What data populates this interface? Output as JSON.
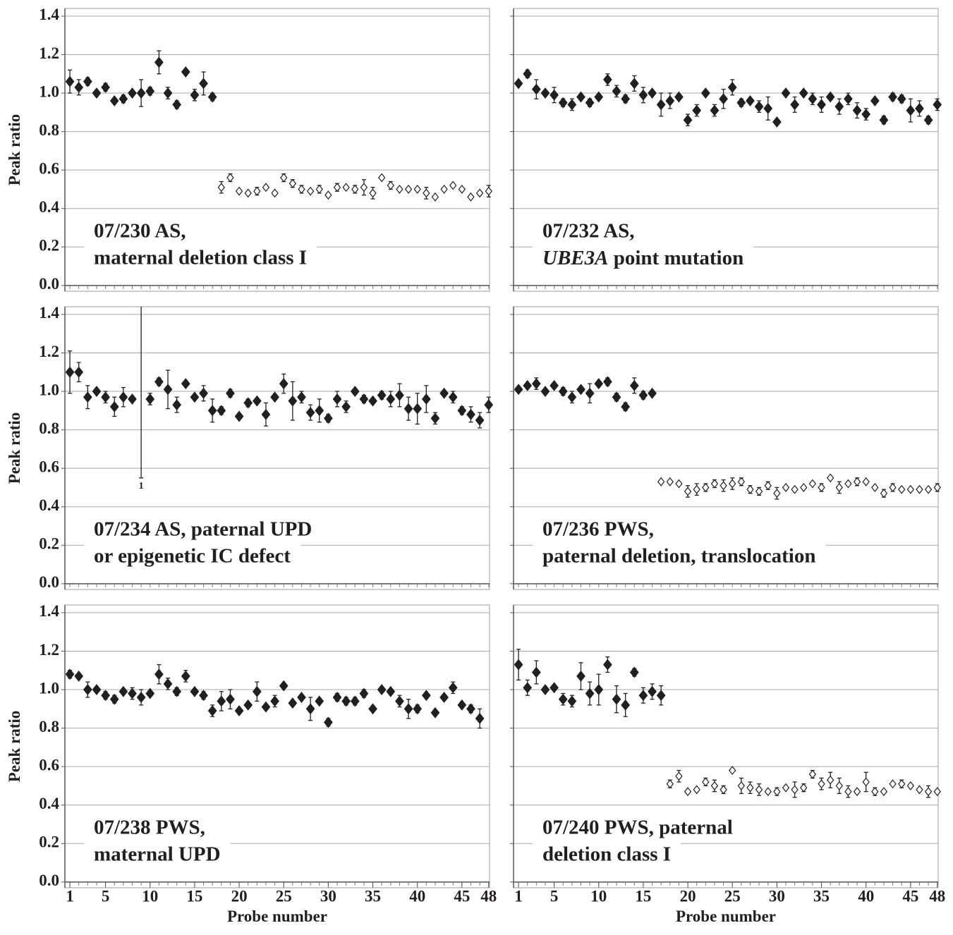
{
  "chart_data": [
    {
      "type": "scatter",
      "title": [
        "07/230 AS,",
        "maternal deletion class I"
      ],
      "ylabel": "Peak ratio",
      "x": [
        1,
        2,
        3,
        4,
        5,
        6,
        7,
        8,
        9,
        10,
        11,
        12,
        13,
        14,
        15,
        16,
        17,
        18,
        19,
        20,
        21,
        22,
        23,
        24,
        25,
        26,
        27,
        28,
        29,
        30,
        31,
        32,
        33,
        34,
        35,
        36,
        37,
        38,
        39,
        40,
        41,
        42,
        43,
        44,
        45,
        46,
        47,
        48
      ],
      "values": [
        1.06,
        1.03,
        1.06,
        1.0,
        1.03,
        0.96,
        0.97,
        1.0,
        1.0,
        1.01,
        1.16,
        1.0,
        0.94,
        1.11,
        0.99,
        1.05,
        0.98,
        0.51,
        0.56,
        0.49,
        0.48,
        0.49,
        0.51,
        0.48,
        0.56,
        0.53,
        0.5,
        0.49,
        0.5,
        0.47,
        0.51,
        0.51,
        0.5,
        0.51,
        0.48,
        0.56,
        0.52,
        0.5,
        0.5,
        0.5,
        0.48,
        0.46,
        0.5,
        0.52,
        0.5,
        0.46,
        0.48,
        0.49
      ],
      "errors": [
        0.06,
        0.04,
        0.02,
        0,
        0.02,
        0,
        0.02,
        0,
        0.07,
        0.02,
        0.06,
        0.03,
        0.02,
        0,
        0.03,
        0.06,
        0.02,
        0.03,
        0.02,
        0,
        0,
        0.02,
        0,
        0,
        0.02,
        0.02,
        0.02,
        0,
        0.02,
        0,
        0.02,
        0,
        0.02,
        0.04,
        0.03,
        0,
        0.02,
        0,
        0,
        0,
        0.03,
        0,
        0,
        0,
        0,
        0,
        0,
        0.03
      ],
      "filled_through": 17,
      "xlim": [
        0.44,
        48.1
      ],
      "ylim": [
        -0.03,
        1.44
      ],
      "yticks": [
        {
          "value": 0,
          "label": "0.0"
        },
        0.2,
        0.4,
        0.6,
        0.8,
        {
          "value": 1,
          "label": "1.0"
        },
        1.2,
        1.4
      ],
      "ytick_labels": true,
      "grid": true
    },
    {
      "type": "scatter",
      "title": [
        "07/232 AS,",
        [
          {
            "text": "UBE3A",
            "italic": true
          },
          {
            "text": " point mutation"
          }
        ]
      ],
      "x": [
        1,
        2,
        3,
        4,
        5,
        6,
        7,
        8,
        9,
        10,
        11,
        12,
        13,
        14,
        15,
        16,
        17,
        18,
        19,
        20,
        21,
        22,
        23,
        24,
        25,
        26,
        27,
        28,
        29,
        30,
        31,
        32,
        33,
        34,
        35,
        36,
        37,
        38,
        39,
        40,
        41,
        42,
        43,
        44,
        45,
        46,
        47,
        48
      ],
      "values": [
        1.05,
        1.1,
        1.02,
        1.0,
        0.99,
        0.95,
        0.94,
        0.98,
        0.95,
        0.98,
        1.07,
        1.01,
        0.97,
        1.05,
        0.99,
        1.0,
        0.94,
        0.96,
        0.98,
        0.86,
        0.91,
        1.0,
        0.91,
        0.97,
        1.03,
        0.95,
        0.96,
        0.93,
        0.92,
        0.85,
        1.0,
        0.94,
        1.0,
        0.97,
        0.94,
        0.98,
        0.93,
        0.97,
        0.91,
        0.89,
        0.96,
        0.86,
        0.98,
        0.97,
        0.91,
        0.92,
        0.86,
        0.94
      ],
      "errors": [
        0,
        0.02,
        0.05,
        0,
        0.04,
        0.02,
        0.03,
        0,
        0.02,
        0,
        0.03,
        0.03,
        0.02,
        0.04,
        0.04,
        0,
        0.06,
        0.04,
        0,
        0.03,
        0.03,
        0,
        0.03,
        0.05,
        0.04,
        0.02,
        0,
        0.03,
        0.06,
        0,
        0,
        0.04,
        0,
        0.03,
        0.04,
        0,
        0.04,
        0.03,
        0.04,
        0.03,
        0,
        0.02,
        0.02,
        0.02,
        0.06,
        0.04,
        0.02,
        0.03
      ],
      "filled_through": 48,
      "xlim": [
        0.44,
        48.1
      ],
      "ylim": [
        -0.03,
        1.44
      ],
      "yticks": [
        {
          "value": 0,
          "label": "0.0"
        },
        0.2,
        0.4,
        0.6,
        0.8,
        {
          "value": 1,
          "label": "1.0"
        },
        1.2,
        1.4
      ],
      "ytick_labels": false,
      "grid": true
    },
    {
      "type": "scatter",
      "title": [
        "07/234 AS, paternal UPD",
        "or epigenetic IC defect"
      ],
      "ylabel": "Peak ratio",
      "x": [
        1,
        2,
        3,
        4,
        5,
        6,
        7,
        8,
        9,
        10,
        11,
        12,
        13,
        14,
        15,
        16,
        17,
        18,
        19,
        20,
        21,
        22,
        23,
        24,
        25,
        26,
        27,
        28,
        29,
        30,
        31,
        32,
        33,
        34,
        35,
        36,
        37,
        38,
        39,
        40,
        41,
        42,
        43,
        44,
        45,
        46,
        47,
        48
      ],
      "values": [
        1.1,
        1.1,
        0.97,
        1.0,
        0.97,
        0.92,
        0.97,
        0.96,
        null,
        0.96,
        1.05,
        1.01,
        0.93,
        1.04,
        0.97,
        0.99,
        0.9,
        0.9,
        0.99,
        0.87,
        0.94,
        0.95,
        0.88,
        0.97,
        1.04,
        0.95,
        0.97,
        0.89,
        0.9,
        0.86,
        0.96,
        0.92,
        1.0,
        0.96,
        0.95,
        0.98,
        0.96,
        0.98,
        0.91,
        0.91,
        0.96,
        0.86,
        0.99,
        0.97,
        0.9,
        0.88,
        0.85,
        0.93
      ],
      "errors": [
        0.11,
        0.05,
        0.06,
        0,
        0.03,
        0.05,
        0.05,
        0,
        null,
        0.03,
        0.02,
        0.1,
        0.04,
        0,
        0,
        0.04,
        0.06,
        0.02,
        0.02,
        0,
        0.02,
        0,
        0.06,
        0,
        0.05,
        0.1,
        0.03,
        0.04,
        0.06,
        0.02,
        0.04,
        0.03,
        0,
        0.02,
        0,
        0.02,
        0.04,
        0.06,
        0.06,
        0.08,
        0.07,
        0.03,
        0,
        0.03,
        0.02,
        0.04,
        0.04,
        0.04
      ],
      "annotations": [
        {
          "x": 9,
          "ymin": 0.55,
          "ymax": 1.44,
          "text": "1"
        }
      ],
      "filled_through": 48,
      "xlim": [
        0.44,
        48.1
      ],
      "ylim": [
        -0.03,
        1.44
      ],
      "yticks": [
        {
          "value": 0,
          "label": "0.0"
        },
        0.2,
        0.4,
        0.6,
        0.8,
        {
          "value": 1,
          "label": "1.0"
        },
        1.2,
        1.4
      ],
      "ytick_labels": true,
      "grid": true
    },
    {
      "type": "scatter",
      "title": [
        "07/236 PWS,",
        "paternal deletion, translocation"
      ],
      "x": [
        1,
        2,
        3,
        4,
        5,
        6,
        7,
        8,
        9,
        10,
        11,
        12,
        13,
        14,
        15,
        16,
        17,
        18,
        19,
        20,
        21,
        22,
        23,
        24,
        25,
        26,
        27,
        28,
        29,
        30,
        31,
        32,
        33,
        34,
        35,
        36,
        37,
        38,
        39,
        40,
        41,
        42,
        43,
        44,
        45,
        46,
        47,
        48
      ],
      "values": [
        1.01,
        1.03,
        1.04,
        1.0,
        1.03,
        1.0,
        0.97,
        1.01,
        0.99,
        1.04,
        1.05,
        0.97,
        0.92,
        1.03,
        0.98,
        0.99,
        0.53,
        0.53,
        0.52,
        0.48,
        0.49,
        0.5,
        0.52,
        0.51,
        0.52,
        0.53,
        0.49,
        0.48,
        0.51,
        0.47,
        0.5,
        0.49,
        0.5,
        0.52,
        0.5,
        0.55,
        0.5,
        0.52,
        0.53,
        0.53,
        0.5,
        0.47,
        0.5,
        0.49,
        0.49,
        0.49,
        0.49,
        0.5
      ],
      "errors": [
        0,
        0.01,
        0.03,
        0,
        0,
        0.02,
        0.03,
        0,
        0.05,
        0,
        0.02,
        0.02,
        0.02,
        0.04,
        0.02,
        0,
        0,
        0,
        0,
        0.03,
        0.03,
        0.02,
        0.02,
        0.03,
        0.03,
        0.02,
        0.02,
        0.02,
        0.02,
        0.03,
        0,
        0,
        0,
        0,
        0.02,
        0,
        0.03,
        0,
        0.02,
        0,
        0,
        0.02,
        0.02,
        0,
        0,
        0,
        0,
        0.02
      ],
      "filled_through": 16,
      "xlim": [
        0.44,
        48.1
      ],
      "ylim": [
        -0.03,
        1.44
      ],
      "yticks": [
        {
          "value": 0,
          "label": "0.0"
        },
        0.2,
        0.4,
        0.6,
        0.8,
        {
          "value": 1,
          "label": "1.0"
        },
        1.2,
        1.4
      ],
      "ytick_labels": false,
      "grid": true
    },
    {
      "type": "scatter",
      "title": [
        "07/238 PWS,",
        "maternal UPD"
      ],
      "ylabel": "Peak ratio",
      "xlabel": "Probe number",
      "x": [
        1,
        2,
        3,
        4,
        5,
        6,
        7,
        8,
        9,
        10,
        11,
        12,
        13,
        14,
        15,
        16,
        17,
        18,
        19,
        20,
        21,
        22,
        23,
        24,
        25,
        26,
        27,
        28,
        29,
        30,
        31,
        32,
        33,
        34,
        35,
        36,
        37,
        38,
        39,
        40,
        41,
        42,
        43,
        44,
        45,
        46,
        47,
        48
      ],
      "values": [
        1.08,
        1.07,
        1.0,
        1.0,
        0.97,
        0.95,
        0.99,
        0.98,
        0.96,
        0.98,
        1.08,
        1.03,
        0.99,
        1.07,
        0.99,
        0.97,
        0.89,
        0.94,
        0.95,
        0.89,
        0.92,
        0.99,
        0.91,
        0.94,
        1.02,
        0.93,
        0.96,
        0.9,
        0.94,
        0.83,
        0.96,
        0.94,
        0.94,
        0.98,
        0.9,
        1.0,
        0.99,
        0.94,
        0.9,
        0.9,
        0.97,
        0.88,
        0.96,
        1.01,
        0.92,
        0.9,
        0.85,
        null
      ],
      "errors": [
        0.02,
        0,
        0.04,
        0,
        0.02,
        0.02,
        0,
        0.03,
        0.04,
        0,
        0.05,
        0.03,
        0.02,
        0.03,
        0,
        0.02,
        0.03,
        0.05,
        0.05,
        0,
        0,
        0.05,
        0,
        0.03,
        0,
        0,
        0,
        0.06,
        0,
        0.02,
        0.02,
        0.02,
        0.02,
        0.02,
        0,
        0,
        0,
        0.03,
        0.05,
        0.02,
        0,
        0,
        0,
        0.03,
        0,
        0.02,
        0.05,
        null
      ],
      "filled_through": 48,
      "xlim": [
        0.44,
        48.1
      ],
      "ylim": [
        -0.03,
        1.44
      ],
      "xticks": [
        1,
        5,
        10,
        15,
        20,
        25,
        30,
        35,
        40,
        45,
        48
      ],
      "yticks": [
        {
          "value": 0,
          "label": "0.0"
        },
        0.2,
        0.4,
        0.6,
        0.8,
        {
          "value": 1,
          "label": "1.0"
        },
        1.2,
        1.4
      ],
      "ytick_labels": true,
      "grid": true
    },
    {
      "type": "scatter",
      "title": [
        "07/240 PWS, paternal",
        "deletion class I"
      ],
      "xlabel": "Probe number",
      "x": [
        1,
        2,
        3,
        4,
        5,
        6,
        7,
        8,
        9,
        10,
        11,
        12,
        13,
        14,
        15,
        16,
        17,
        18,
        19,
        20,
        21,
        22,
        23,
        24,
        25,
        26,
        27,
        28,
        29,
        30,
        31,
        32,
        33,
        34,
        35,
        36,
        37,
        38,
        39,
        40,
        41,
        42,
        43,
        44,
        45,
        46,
        47,
        48
      ],
      "values": [
        1.13,
        1.01,
        1.09,
        1.0,
        1.01,
        0.95,
        0.94,
        1.07,
        0.98,
        1.0,
        1.13,
        0.95,
        0.92,
        1.09,
        0.97,
        0.99,
        0.97,
        0.51,
        0.55,
        0.47,
        0.48,
        0.52,
        0.5,
        0.48,
        0.58,
        0.5,
        0.49,
        0.48,
        0.47,
        0.47,
        0.49,
        0.48,
        0.49,
        0.56,
        0.51,
        0.53,
        0.5,
        0.47,
        0.47,
        0.52,
        0.47,
        0.47,
        0.51,
        0.51,
        0.5,
        0.48,
        0.47,
        0.47
      ],
      "errors": [
        0.08,
        0.04,
        0.06,
        0,
        0.01,
        0.03,
        0.03,
        0.07,
        0.06,
        0.08,
        0.04,
        0.07,
        0.06,
        0.02,
        0.04,
        0.04,
        0.05,
        0.02,
        0.03,
        0,
        0,
        0.02,
        0.03,
        0.02,
        0,
        0.04,
        0.03,
        0.03,
        0,
        0.02,
        0,
        0.04,
        0.02,
        0.02,
        0.03,
        0.04,
        0.04,
        0.03,
        0,
        0.05,
        0.02,
        0,
        0,
        0.02,
        0,
        0,
        0.03,
        0
      ],
      "filled_through": 17,
      "xlim": [
        0.44,
        48.1
      ],
      "ylim": [
        -0.03,
        1.44
      ],
      "xticks": [
        1,
        5,
        10,
        15,
        20,
        25,
        30,
        35,
        40,
        45,
        48
      ],
      "yticks": [
        {
          "value": 0,
          "label": "0.0"
        },
        0.2,
        0.4,
        0.6,
        0.8,
        {
          "value": 1,
          "label": "1.0"
        },
        1.2,
        1.4
      ],
      "ytick_labels": false,
      "grid": true
    }
  ]
}
